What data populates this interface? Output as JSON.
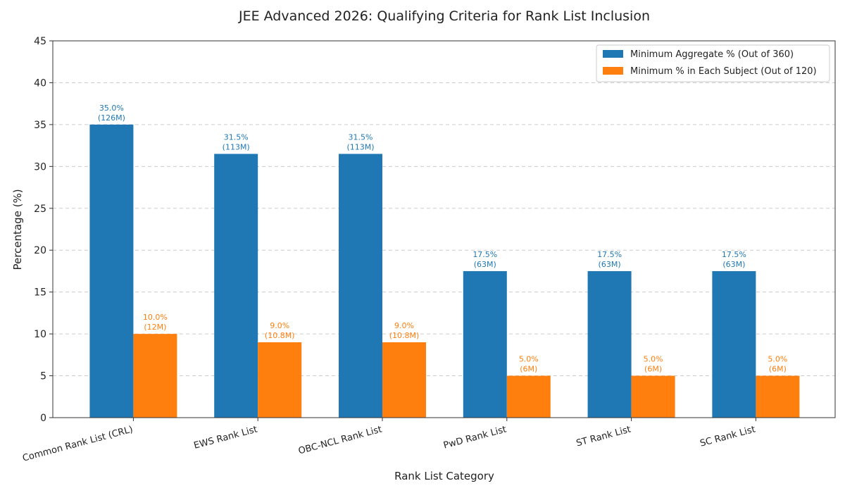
{
  "chart_data": {
    "type": "bar",
    "title": "JEE Advanced 2026: Qualifying Criteria for Rank List Inclusion",
    "xlabel": "Rank List Category",
    "ylabel": "Percentage (%)",
    "ylim": [
      0,
      45
    ],
    "yticks": [
      "0",
      "5",
      "10",
      "15",
      "20",
      "25",
      "30",
      "35",
      "40",
      "45"
    ],
    "ytick_values": [
      0,
      5,
      10,
      15,
      20,
      25,
      30,
      35,
      40,
      45
    ],
    "grid": true,
    "legend_position": "top-right",
    "categories": [
      "Common Rank List (CRL)",
      "EWS Rank List",
      "OBC-NCL Rank List",
      "PwD Rank List",
      "ST Rank List",
      "SC Rank List"
    ],
    "series": [
      {
        "name": "Minimum Aggregate % (Out of 360)",
        "color": "#1f77b4",
        "values": [
          35.0,
          31.5,
          31.5,
          17.5,
          17.5,
          17.5
        ],
        "labels": [
          [
            "35.0%",
            "(126M)"
          ],
          [
            "31.5%",
            "(113M)"
          ],
          [
            "31.5%",
            "(113M)"
          ],
          [
            "17.5%",
            "(63M)"
          ],
          [
            "17.5%",
            "(63M)"
          ],
          [
            "17.5%",
            "(63M)"
          ]
        ]
      },
      {
        "name": "Minimum % in Each Subject (Out of 120)",
        "color": "#ff7f0e",
        "values": [
          10.0,
          9.0,
          9.0,
          5.0,
          5.0,
          5.0
        ],
        "labels": [
          [
            "10.0%",
            "(12M)"
          ],
          [
            "9.0%",
            "(10.8M)"
          ],
          [
            "9.0%",
            "(10.8M)"
          ],
          [
            "5.0%",
            "(6M)"
          ],
          [
            "5.0%",
            "(6M)"
          ],
          [
            "5.0%",
            "(6M)"
          ]
        ]
      }
    ]
  }
}
